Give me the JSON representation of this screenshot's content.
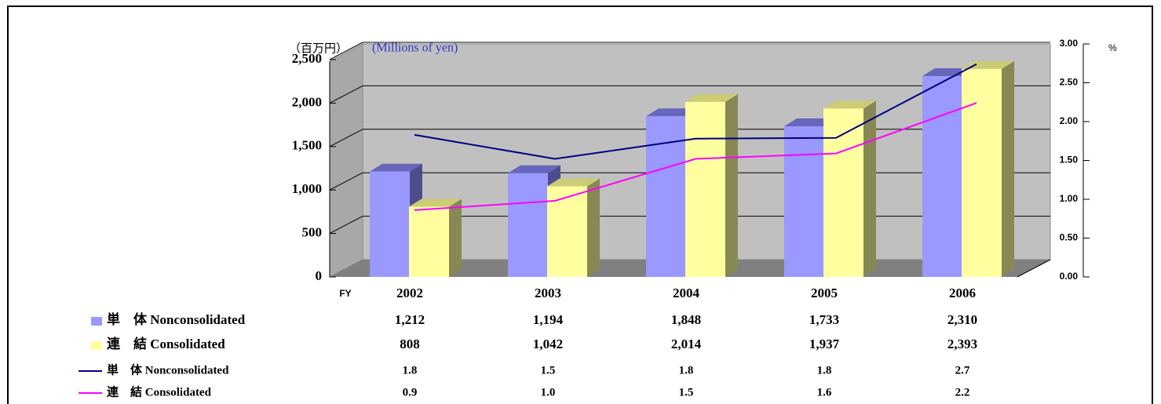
{
  "chart_data": {
    "type": "bar-line",
    "unit_left_ja": "（百万円）",
    "unit_left_en": "(Millions of yen)",
    "unit_right": "%",
    "x_label": "FY",
    "categories": [
      "2002",
      "2003",
      "2004",
      "2005",
      "2006"
    ],
    "ylim": [
      0,
      2500
    ],
    "yticks": [
      0,
      500,
      {
        "value": 1000,
        "label": "1,000"
      },
      {
        "value": 1500,
        "label": "1,500"
      },
      {
        "value": 2000,
        "label": "2,000"
      },
      {
        "value": 2500,
        "label": "2,500"
      }
    ],
    "y2lim": [
      0,
      3
    ],
    "y2ticks": [
      {
        "value": 0,
        "label": "0.00"
      },
      {
        "value": 0.5,
        "label": "0.50"
      },
      {
        "value": 1,
        "label": "1.00"
      },
      {
        "value": 1.5,
        "label": "1.50"
      },
      {
        "value": 2,
        "label": "2.00"
      },
      {
        "value": 2.5,
        "label": "2.50"
      },
      {
        "value": 3,
        "label": "3.00"
      }
    ],
    "grid": true,
    "series": [
      {
        "name": "単　体 Nonconsolidated",
        "type": "bar",
        "color": "#9999ff",
        "values": [
          1212,
          1194,
          1848,
          1733,
          2310
        ],
        "value_labels": [
          "1,212",
          "1,194",
          "1,848",
          "1,733",
          "2,310"
        ]
      },
      {
        "name": "連　結 Consolidated",
        "type": "bar",
        "color": "#ffffa0",
        "values": [
          808,
          1042,
          2014,
          1937,
          2393
        ],
        "value_labels": [
          "808",
          "1,042",
          "2,014",
          "1,937",
          "2,393"
        ]
      },
      {
        "name": "単　体 Nonconsolidated",
        "type": "line",
        "axis": "y2",
        "color": "#000080",
        "values": [
          1.83,
          1.52,
          1.78,
          1.79,
          2.74
        ],
        "value_labels": [
          "1.8",
          "1.5",
          "1.8",
          "1.8",
          "2.7"
        ]
      },
      {
        "name": "連　結 Consolidated",
        "type": "line",
        "axis": "y2",
        "color": "#ff00ff",
        "values": [
          0.86,
          0.98,
          1.52,
          1.59,
          2.24
        ],
        "value_labels": [
          "0.9",
          "1.0",
          "1.5",
          "1.6",
          "2.2"
        ]
      }
    ]
  }
}
